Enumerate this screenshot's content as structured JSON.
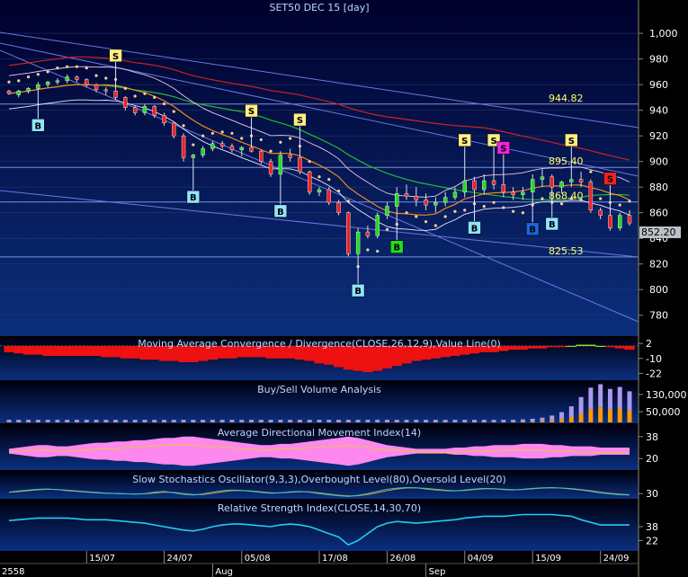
{
  "chart_data": [
    {
      "type": "candlestick",
      "title": "SET50 DEC 15   [day]",
      "yticks": [
        1000,
        980,
        960,
        940,
        920,
        900,
        880,
        860,
        840,
        820,
        800,
        780
      ],
      "yticks_text": [
        "1,000",
        "980",
        "960",
        "940",
        "920",
        "900",
        "880",
        "860",
        "840",
        "820",
        "800",
        "780"
      ],
      "ylim": [
        770,
        1012
      ],
      "candles": [
        [
          955,
          956,
          952,
          953
        ],
        [
          952,
          956,
          950,
          955
        ],
        [
          955,
          958,
          953,
          957
        ],
        [
          957,
          962,
          955,
          960
        ],
        [
          960,
          963,
          958,
          962
        ],
        [
          962,
          965,
          960,
          963
        ],
        [
          963,
          968,
          961,
          966
        ],
        [
          966,
          967,
          962,
          964
        ],
        [
          964,
          965,
          958,
          960
        ],
        [
          960,
          961,
          954,
          956
        ],
        [
          956,
          958,
          952,
          955
        ],
        [
          955,
          956,
          948,
          950
        ],
        [
          950,
          951,
          940,
          942
        ],
        [
          942,
          944,
          936,
          938
        ],
        [
          938,
          945,
          936,
          943
        ],
        [
          943,
          944,
          934,
          936
        ],
        [
          936,
          938,
          928,
          930
        ],
        [
          930,
          931,
          918,
          920
        ],
        [
          920,
          922,
          900,
          903
        ],
        [
          903,
          906,
          899,
          905
        ],
        [
          905,
          912,
          903,
          910
        ],
        [
          910,
          916,
          908,
          914
        ],
        [
          914,
          916,
          910,
          912
        ],
        [
          912,
          914,
          907,
          909
        ],
        [
          909,
          912,
          904,
          911
        ],
        [
          911,
          913,
          907,
          908
        ],
        [
          908,
          909,
          898,
          900
        ],
        [
          900,
          902,
          888,
          890
        ],
        [
          890,
          908,
          888,
          905
        ],
        [
          905,
          910,
          900,
          903
        ],
        [
          903,
          906,
          890,
          892
        ],
        [
          892,
          893,
          874,
          876
        ],
        [
          876,
          880,
          873,
          878
        ],
        [
          878,
          880,
          866,
          868
        ],
        [
          868,
          870,
          858,
          860
        ],
        [
          860,
          861,
          826,
          828
        ],
        [
          828,
          848,
          826,
          845
        ],
        [
          845,
          850,
          840,
          842
        ],
        [
          842,
          860,
          840,
          858
        ],
        [
          858,
          868,
          855,
          865
        ],
        [
          865,
          880,
          860,
          875
        ],
        [
          875,
          882,
          870,
          873
        ],
        [
          873,
          880,
          865,
          870
        ],
        [
          870,
          875,
          862,
          866
        ],
        [
          866,
          872,
          860,
          868
        ],
        [
          868,
          876,
          865,
          872
        ],
        [
          872,
          880,
          870,
          876
        ],
        [
          876,
          890,
          872,
          885
        ],
        [
          885,
          888,
          875,
          878
        ],
        [
          878,
          890,
          874,
          885
        ],
        [
          885,
          890,
          878,
          882
        ],
        [
          882,
          884,
          872,
          876
        ],
        [
          876,
          880,
          870,
          874
        ],
        [
          874,
          880,
          870,
          876
        ],
        [
          876,
          890,
          874,
          886
        ],
        [
          886,
          894,
          880,
          888
        ],
        [
          888,
          890,
          878,
          880
        ],
        [
          880,
          885,
          875,
          884
        ],
        [
          884,
          890,
          880,
          886
        ],
        [
          886,
          892,
          880,
          884
        ],
        [
          884,
          886,
          860,
          862
        ],
        [
          862,
          864,
          855,
          858
        ],
        [
          858,
          860,
          846,
          848
        ],
        [
          848,
          860,
          846,
          858
        ],
        [
          858,
          862,
          850,
          852
        ]
      ],
      "candle_sets": {
        "bull": "#22dd22",
        "bear": "#ee2222"
      },
      "price_labels": [
        {
          "value": 944.82,
          "text": "944.82"
        },
        {
          "value": 895.4,
          "text": "895.40"
        },
        {
          "value": 868.4,
          "text": "868.40"
        },
        {
          "value": 825.53,
          "text": "825.53"
        }
      ],
      "last_price": "852.20",
      "signals_buy": [
        {
          "bar": 3,
          "label": "B",
          "color": "#8fe3ff"
        },
        {
          "bar": 19,
          "label": "B",
          "color": "#8fe3ff"
        },
        {
          "bar": 28,
          "label": "B",
          "color": "#8fe3ff"
        },
        {
          "bar": 36,
          "label": "B",
          "color": "#8fe3ff"
        },
        {
          "bar": 40,
          "label": "B",
          "color": "#22dd22"
        },
        {
          "bar": 48,
          "label": "B",
          "color": "#8fe3ff"
        },
        {
          "bar": 54,
          "label": "B",
          "color": "#1a66dd"
        },
        {
          "bar": 56,
          "label": "B",
          "color": "#8fe3ff"
        }
      ],
      "signals_sell": [
        {
          "bar": 11,
          "label": "S",
          "color": "#ffee88"
        },
        {
          "bar": 25,
          "label": "S",
          "color": "#ffee88"
        },
        {
          "bar": 30,
          "label": "S",
          "color": "#ffee88"
        },
        {
          "bar": 47,
          "label": "S",
          "color": "#ffee88"
        },
        {
          "bar": 50,
          "label": "S",
          "color": "#ffee88"
        },
        {
          "bar": 51,
          "label": "S",
          "color": "#ee22dd"
        },
        {
          "bar": 58,
          "label": "S",
          "color": "#ffee88"
        },
        {
          "bar": 62,
          "label": "S",
          "color": "#ee2222"
        }
      ]
    },
    {
      "type": "histogram",
      "title": "Moving Average Convergence / Divergence(CLOSE,26,12,9),Value Line(0)",
      "yticks_text": [
        "2",
        "-10",
        "-22"
      ],
      "yticks": [
        2,
        -10,
        -22
      ],
      "ylim": [
        -26,
        5
      ],
      "values": [
        -5,
        -6,
        -7,
        -7,
        -8,
        -8,
        -8,
        -8,
        -8,
        -8,
        -9,
        -9,
        -10,
        -10,
        -11,
        -11,
        -12,
        -12,
        -13,
        -13,
        -12,
        -11,
        -10,
        -10,
        -9,
        -9,
        -9,
        -10,
        -10,
        -10,
        -11,
        -12,
        -14,
        -15,
        -17,
        -19,
        -20,
        -21,
        -20,
        -18,
        -16,
        -14,
        -12,
        -11,
        -10,
        -9,
        -8,
        -7,
        -6,
        -5,
        -5,
        -4,
        -3,
        -3,
        -2,
        -2,
        -1,
        -1,
        0,
        1,
        1,
        0,
        -1,
        -2,
        -3
      ],
      "colors": {
        "positive": "#99ee22",
        "negative": "#ee1111"
      }
    },
    {
      "type": "bar",
      "title": "Buy/Sell Volume Analysis",
      "yticks_text": [
        "130,000",
        "50,000"
      ],
      "yticks": [
        130000,
        50000
      ],
      "ylim": [
        0,
        180000
      ],
      "buy": [
        3000,
        3000,
        3000,
        3000,
        3000,
        3000,
        3000,
        3000,
        3000,
        3000,
        3000,
        3000,
        3000,
        3000,
        3000,
        3000,
        3000,
        3000,
        3000,
        3000,
        3000,
        3000,
        3000,
        3000,
        3000,
        3000,
        3000,
        3000,
        3000,
        3000,
        3000,
        3000,
        3000,
        3000,
        3000,
        3000,
        3000,
        3000,
        3000,
        3000,
        3000,
        3000,
        3000,
        3000,
        3000,
        3000,
        3000,
        3000,
        3000,
        3000,
        3000,
        3000,
        3000,
        4000,
        5000,
        7000,
        10000,
        16000,
        25000,
        40000,
        62000,
        70000,
        60000,
        65000,
        55000
      ],
      "sell": [
        9000,
        9000,
        9000,
        9000,
        9000,
        9000,
        9000,
        9000,
        9000,
        9000,
        9000,
        9000,
        9000,
        9000,
        9000,
        9000,
        9000,
        9000,
        9000,
        9000,
        9000,
        9000,
        9000,
        9000,
        9000,
        9000,
        9000,
        9000,
        9000,
        9000,
        9000,
        9000,
        9000,
        9000,
        9000,
        9000,
        9000,
        9000,
        9000,
        9000,
        9000,
        9000,
        9000,
        9000,
        9000,
        9000,
        9000,
        9000,
        9000,
        9000,
        9000,
        9000,
        9000,
        10000,
        12000,
        15000,
        22000,
        32000,
        50000,
        78000,
        100000,
        108000,
        96000,
        100000,
        90000
      ],
      "colors": {
        "buy": "#ff9900",
        "sell": "#aa99ee"
      }
    },
    {
      "type": "area",
      "title": "Average Directional Movement Index(14)",
      "yticks_text": [
        "38",
        "20"
      ],
      "yticks": [
        38,
        20
      ],
      "ylim": [
        12,
        46
      ],
      "adx": [
        28,
        29,
        30,
        31,
        31,
        30,
        30,
        31,
        32,
        33,
        33,
        34,
        34,
        35,
        35,
        36,
        37,
        37,
        38,
        38,
        37,
        36,
        35,
        34,
        33,
        32,
        31,
        31,
        32,
        32,
        33,
        34,
        35,
        36,
        37,
        38,
        37,
        35,
        33,
        31,
        30,
        29,
        28,
        28,
        28,
        28,
        29,
        29,
        30,
        30,
        31,
        31,
        31,
        32,
        32,
        32,
        31,
        31,
        30,
        30,
        30,
        29,
        29,
        29,
        29
      ],
      "adx_color": "#ff88ee",
      "line": [
        26,
        26,
        27,
        27,
        27,
        26,
        26,
        27,
        27,
        28,
        28,
        28,
        29,
        29,
        30,
        30,
        31,
        31,
        31,
        31,
        30,
        30,
        29,
        29,
        28,
        28,
        27,
        27,
        28,
        28,
        28,
        29,
        29,
        30,
        30,
        31,
        30,
        29,
        28,
        27,
        27,
        26,
        26,
        25,
        25,
        25,
        25,
        26,
        26,
        26,
        26,
        27,
        27,
        27,
        27,
        27,
        26,
        26,
        26,
        25,
        25,
        25,
        25,
        25,
        25
      ],
      "line_color": "#ddcc33"
    },
    {
      "type": "line",
      "title": "Slow Stochastics Oscillator(9,3,3),Overbought Level(80),Oversold Level(20)",
      "yticks_text": [
        "30"
      ],
      "yticks": [
        30
      ],
      "ylim": [
        0,
        100
      ],
      "k": [
        40,
        48,
        55,
        60,
        62,
        58,
        50,
        45,
        40,
        35,
        32,
        30,
        28,
        26,
        30,
        40,
        45,
        35,
        25,
        20,
        28,
        40,
        50,
        55,
        52,
        45,
        38,
        32,
        36,
        42,
        45,
        40,
        30,
        22,
        15,
        10,
        18,
        30,
        45,
        60,
        68,
        72,
        70,
        62,
        55,
        50,
        48,
        55,
        62,
        66,
        64,
        58,
        55,
        60,
        66,
        70,
        72,
        68,
        62,
        55,
        45,
        35,
        28,
        22,
        20
      ],
      "d": [
        38,
        44,
        50,
        56,
        60,
        58,
        54,
        48,
        43,
        38,
        34,
        31,
        29,
        27,
        28,
        34,
        40,
        38,
        30,
        24,
        24,
        32,
        42,
        50,
        52,
        48,
        42,
        36,
        35,
        39,
        43,
        42,
        35,
        27,
        19,
        14,
        15,
        24,
        36,
        50,
        62,
        69,
        70,
        66,
        60,
        54,
        50,
        52,
        58,
        63,
        64,
        61,
        57,
        58,
        63,
        68,
        70,
        69,
        65,
        58,
        50,
        40,
        32,
        26,
        22
      ],
      "colors": {
        "k": "#22cccc",
        "d": "#ee8822"
      }
    },
    {
      "type": "line",
      "title": "Relative Strength Index(CLOSE,14,30,70)",
      "yticks_text": [
        "38",
        "22"
      ],
      "yticks": [
        38,
        22
      ],
      "ylim": [
        12,
        65
      ],
      "values": [
        45,
        46,
        47,
        48,
        48,
        48,
        48,
        47,
        46,
        46,
        46,
        45,
        44,
        43,
        42,
        40,
        38,
        36,
        34,
        33,
        35,
        38,
        40,
        41,
        41,
        40,
        39,
        38,
        40,
        41,
        40,
        38,
        34,
        30,
        26,
        17,
        22,
        30,
        38,
        42,
        44,
        43,
        42,
        43,
        44,
        45,
        46,
        48,
        49,
        50,
        50,
        50,
        51,
        52,
        52,
        52,
        52,
        51,
        50,
        46,
        43,
        40,
        40,
        40,
        40
      ],
      "color": "#22ccee"
    }
  ],
  "x_axis": {
    "year_label": "2558",
    "month_labels": [
      {
        "bar": 21,
        "text": "Aug"
      },
      {
        "bar": 43,
        "text": "Sep"
      }
    ],
    "date_labels": [
      {
        "bar": 8,
        "text": "15/07"
      },
      {
        "bar": 16,
        "text": "24/07"
      },
      {
        "bar": 24,
        "text": "05/08"
      },
      {
        "bar": 32,
        "text": "17/08"
      },
      {
        "bar": 39,
        "text": "26/08"
      },
      {
        "bar": 47,
        "text": "04/09"
      },
      {
        "bar": 54,
        "text": "15/09"
      },
      {
        "bar": 61,
        "text": "24/09"
      }
    ]
  },
  "colors": {
    "main_panel_top": "#00002b",
    "main_panel_bottom": "#0b2f7c",
    "indicator_top": "#000010",
    "indicator_bottom": "#0b2f80",
    "title_text": "#bbd6ff",
    "axis_text": "#ffffff",
    "price_label_text": "#ffff66",
    "last_price_bg": "#bcc0c8"
  }
}
